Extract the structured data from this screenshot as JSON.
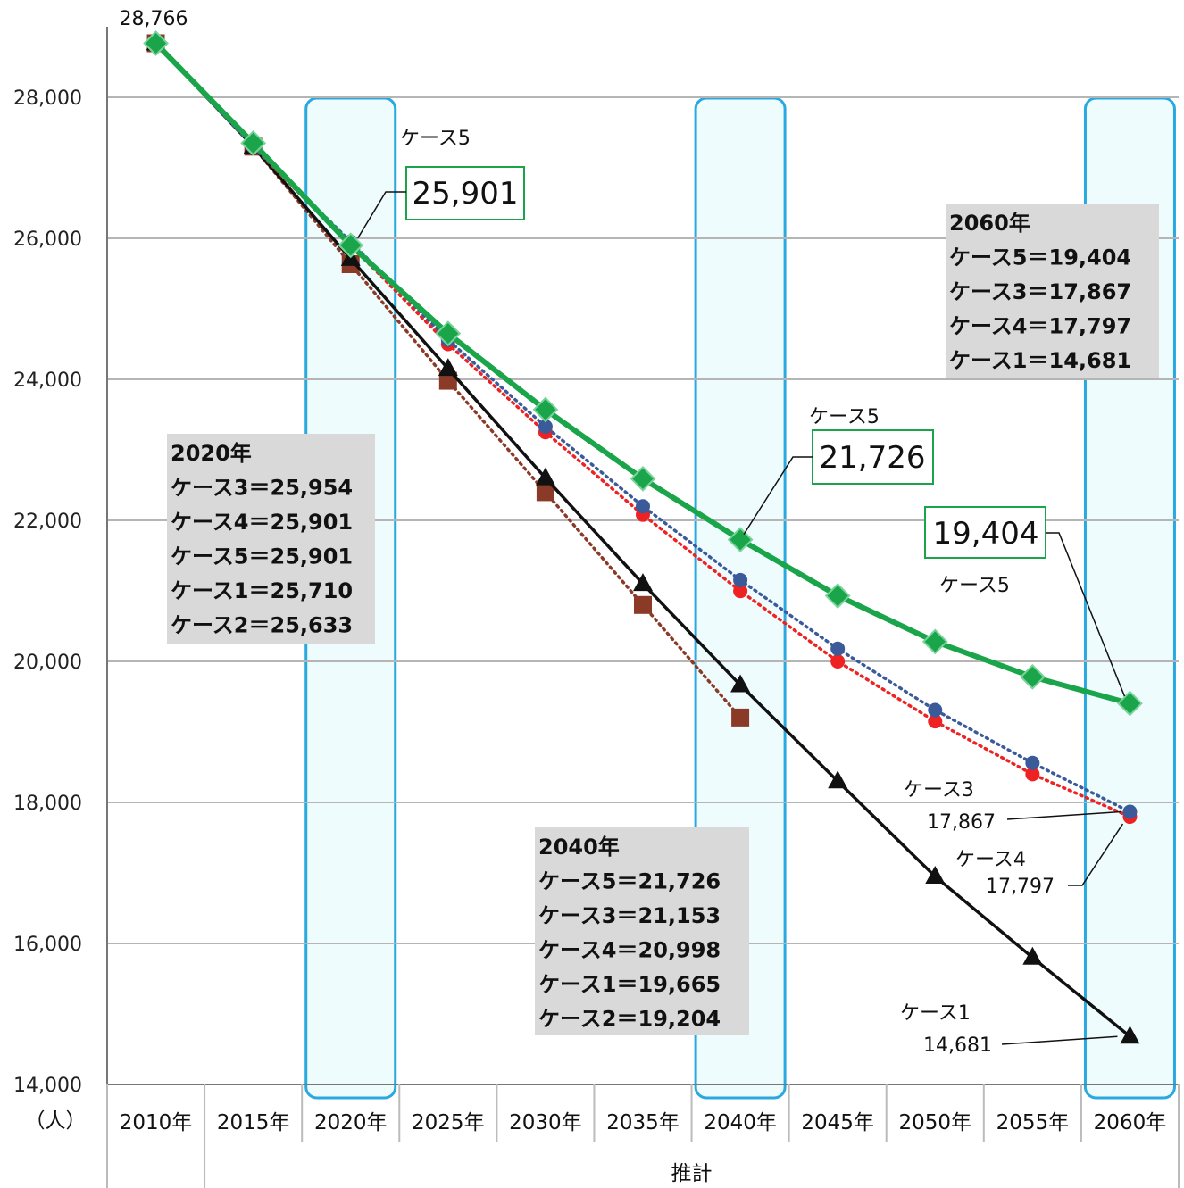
{
  "chart_data": {
    "type": "line",
    "y_unit": "（人）",
    "x_group_label": "推計",
    "categories": [
      "2010年",
      "2015年",
      "2020年",
      "2025年",
      "2030年",
      "2035年",
      "2040年",
      "2045年",
      "2050年",
      "2055年",
      "2060年"
    ],
    "ylim": [
      14000,
      29000
    ],
    "yticks": [
      "14,000",
      "16,000",
      "18,000",
      "20,000",
      "22,000",
      "24,000",
      "26,000",
      "28,000"
    ],
    "grid": true,
    "series": [
      {
        "name": "ケース5",
        "color": "#1aa54a",
        "marker": "diamond",
        "style": "solid",
        "values": [
          28766,
          27350,
          25901,
          24650,
          23570,
          22590,
          21726,
          20930,
          20280,
          19780,
          19404
        ]
      },
      {
        "name": "ケース3",
        "color": "#3a5a9a",
        "marker": "circle",
        "style": "dotted",
        "values": [
          28766,
          27300,
          25954,
          24560,
          23330,
          22200,
          21153,
          20180,
          19310,
          18560,
          17867
        ]
      },
      {
        "name": "ケース4",
        "color": "#ee2222",
        "marker": "circle",
        "style": "dotted",
        "values": [
          28766,
          27300,
          25901,
          24500,
          23250,
          22080,
          20998,
          20000,
          19150,
          18400,
          17797
        ]
      },
      {
        "name": "ケース1",
        "color": "#111111",
        "marker": "triangle",
        "style": "solid",
        "values": [
          28766,
          27300,
          25710,
          24150,
          22600,
          21100,
          19665,
          18300,
          16950,
          15800,
          14681
        ]
      },
      {
        "name": "ケース2",
        "color": "#8b3a28",
        "marker": "square",
        "style": "dotted",
        "values": [
          28766,
          27300,
          25633,
          23980,
          22400,
          20800,
          19204,
          null,
          null,
          null,
          null
        ]
      }
    ],
    "annotations": {
      "start_value": "28,766",
      "c5_2020_label": "ケース5",
      "c5_2020_value": "25,901",
      "c5_2040_label": "ケース5",
      "c5_2040_value": "21,726",
      "c5_2060_value": "19,404",
      "c5_2060_label": "ケース5",
      "c3_2060_label": "ケース3",
      "c3_2060_value": "17,867",
      "c4_2060_label": "ケース4",
      "c4_2060_value": "17,797",
      "c1_2060_label": "ケース1",
      "c1_2060_value": "14,681"
    },
    "summary_boxes": [
      {
        "lines": [
          "2020年",
          "ケース3＝25,954",
          "ケース4＝25,901",
          "ケース5＝25,901",
          "ケース1＝25,710",
          "ケース2＝25,633"
        ]
      },
      {
        "lines": [
          "2040年",
          "ケース5＝21,726",
          "ケース3＝21,153",
          "ケース4＝20,998",
          "ケース1＝19,665",
          "ケース2＝19,204"
        ]
      },
      {
        "lines": [
          "2060年",
          "ケース5＝19,404",
          "ケース3＝17,867",
          "ケース4＝17,797",
          "ケース1＝14,681"
        ]
      }
    ],
    "highlight_years": [
      "2020年",
      "2040年",
      "2060年"
    ]
  }
}
